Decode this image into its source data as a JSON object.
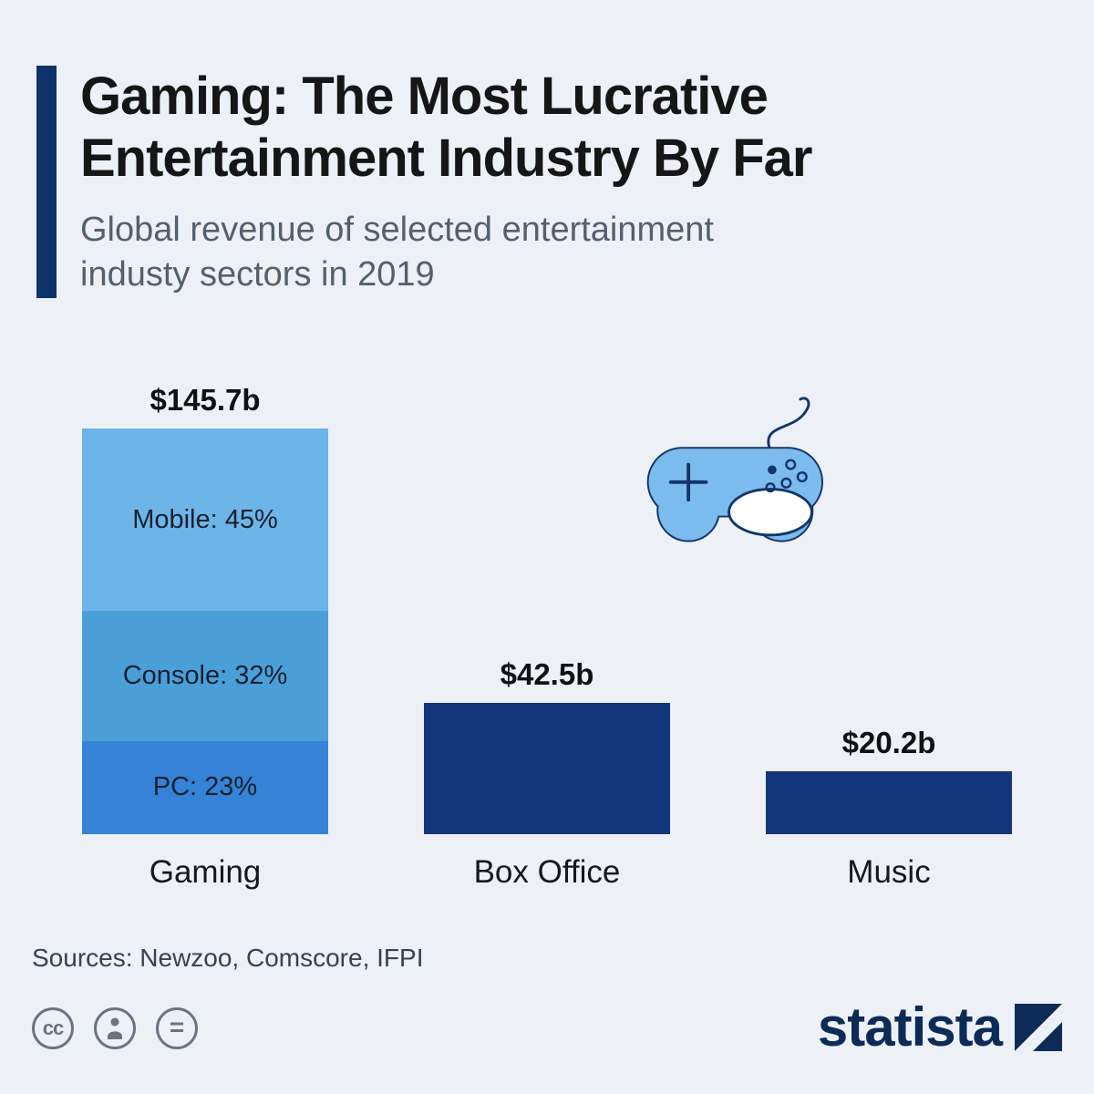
{
  "header": {
    "title_lines": [
      "Gaming: The Most Lucrative",
      "Entertainment Industry By Far"
    ],
    "subtitle_lines": [
      "Global revenue of selected entertainment",
      "industy sectors in 2019"
    ]
  },
  "chart_data": {
    "type": "bar",
    "title": "Gaming: The Most Lucrative Entertainment Industry By Far",
    "subtitle": "Global revenue of selected entertainment industy sectors in 2019",
    "unit": "billion USD",
    "categories": [
      "Gaming",
      "Box Office",
      "Music"
    ],
    "values": [
      145.7,
      42.5,
      20.2
    ],
    "value_labels": [
      "$145.7b",
      "$42.5b",
      "$20.2b"
    ],
    "bar_color": "#15357a",
    "gaming_breakdown": [
      {
        "label": "Mobile: 45%",
        "percent": 45,
        "color": "#6db5e9"
      },
      {
        "label": "Console: 32%",
        "percent": 32,
        "color": "#4b9fd9"
      },
      {
        "label": "PC: 23%",
        "percent": 23,
        "color": "#3583d6"
      }
    ],
    "legend_position": "none",
    "grid": false,
    "ylim": [
      0,
      145.7
    ]
  },
  "footer": {
    "sources": "Sources: Newzoo, Comscore, IFPI",
    "brand": "statista"
  },
  "icons": {
    "controller": "game-controller-icon",
    "cc": "creative-commons-icon",
    "person": "attribution-person-icon",
    "equals": "no-derivatives-icon",
    "brand_mark": "statista-logo-icon"
  }
}
